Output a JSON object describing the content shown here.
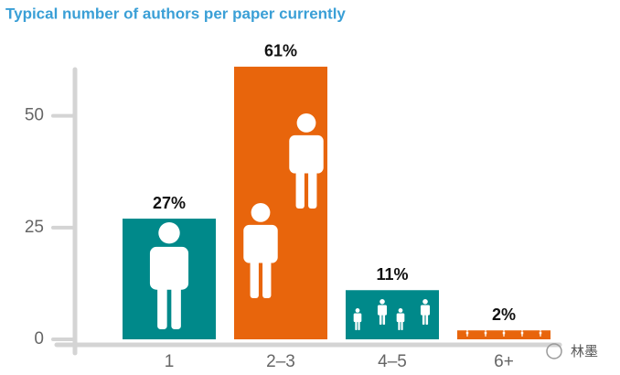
{
  "chart_data": {
    "type": "bar",
    "title": "Typical number of authors per paper currently",
    "categories": [
      "1",
      "2–3",
      "4–5",
      "6+"
    ],
    "values": [
      27,
      61,
      11,
      2
    ],
    "value_labels": [
      "27%",
      "61%",
      "11%",
      "2%"
    ],
    "colors": [
      "#00898a",
      "#e8650c",
      "#00898a",
      "#e8650c"
    ],
    "ylim": [
      0,
      62
    ],
    "yticks": [
      0,
      25,
      50
    ],
    "watermark": "林墨"
  }
}
